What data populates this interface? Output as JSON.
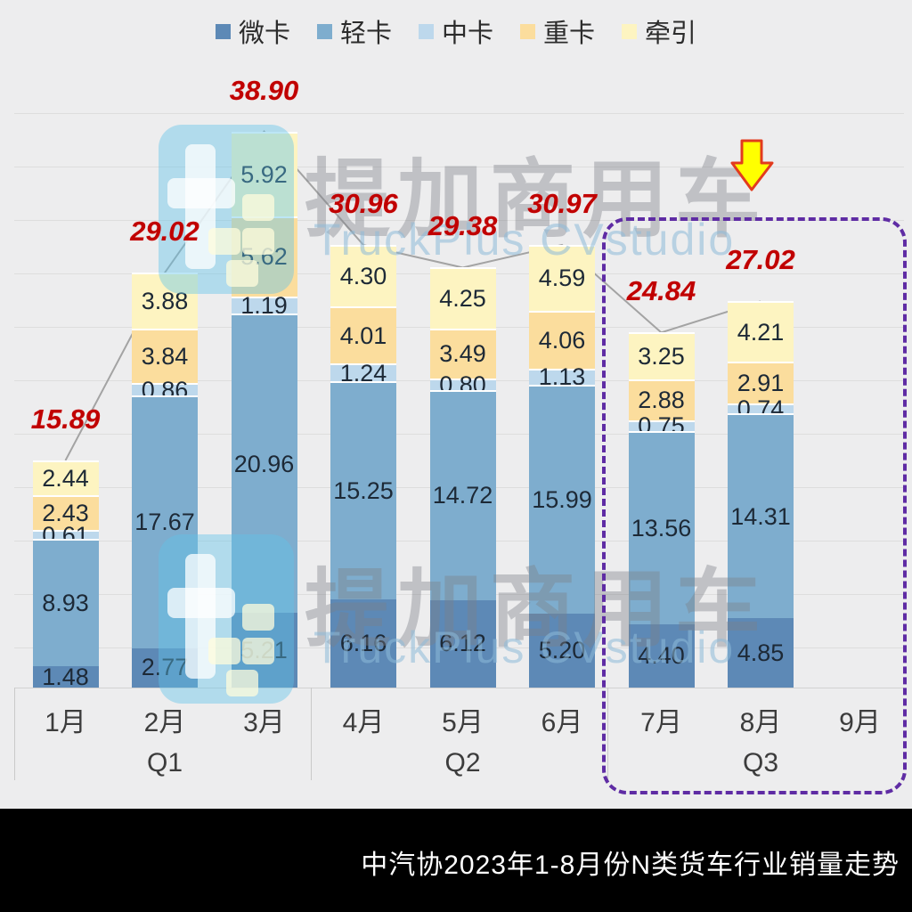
{
  "watermark": {
    "cn": "提加商用车",
    "en": "TruckPlus CVstudio"
  },
  "footer": {
    "title": "中汽协2023年1-8月份N类货车行业销量走势"
  },
  "chart_data": {
    "type": "bar",
    "subtype": "stacked",
    "title": "中汽协2023年1-8月份N类货车行业销量走势",
    "categories": [
      "1月",
      "2月",
      "3月",
      "4月",
      "5月",
      "6月",
      "7月",
      "8月",
      "9月"
    ],
    "groups": [
      {
        "label": "Q1",
        "months": [
          "1月",
          "2月",
          "3月"
        ]
      },
      {
        "label": "Q2",
        "months": [
          "4月",
          "5月",
          "6月"
        ]
      },
      {
        "label": "Q3",
        "months": [
          "7月",
          "8月",
          "9月"
        ]
      }
    ],
    "series": [
      {
        "name": "微卡",
        "color": "#5d89b6",
        "values": [
          1.48,
          2.77,
          5.21,
          6.16,
          6.12,
          5.2,
          4.4,
          4.85,
          null
        ]
      },
      {
        "name": "轻卡",
        "color": "#7eadce",
        "values": [
          8.93,
          17.67,
          20.96,
          15.25,
          14.72,
          15.99,
          13.56,
          14.31,
          null
        ]
      },
      {
        "name": "中卡",
        "color": "#bdd8ec",
        "values": [
          0.61,
          0.86,
          1.19,
          1.24,
          0.8,
          1.13,
          0.75,
          0.74,
          null
        ]
      },
      {
        "name": "重卡",
        "color": "#fbdd9d",
        "values": [
          2.43,
          3.84,
          5.62,
          4.01,
          3.49,
          4.06,
          2.88,
          2.91,
          null
        ]
      },
      {
        "name": "牵引",
        "color": "#fdf4c1",
        "values": [
          2.44,
          3.88,
          5.92,
          4.3,
          4.25,
          4.59,
          3.25,
          4.21,
          null
        ]
      }
    ],
    "totals": [
      15.89,
      29.02,
      38.9,
      30.96,
      29.38,
      30.97,
      24.84,
      27.02,
      null
    ],
    "totals_color": "#c00000",
    "ylim": [
      0,
      40
    ],
    "grid": "horizontal",
    "legend_position": "top",
    "highlight_group": "Q3",
    "value_label_decimals": 2
  }
}
